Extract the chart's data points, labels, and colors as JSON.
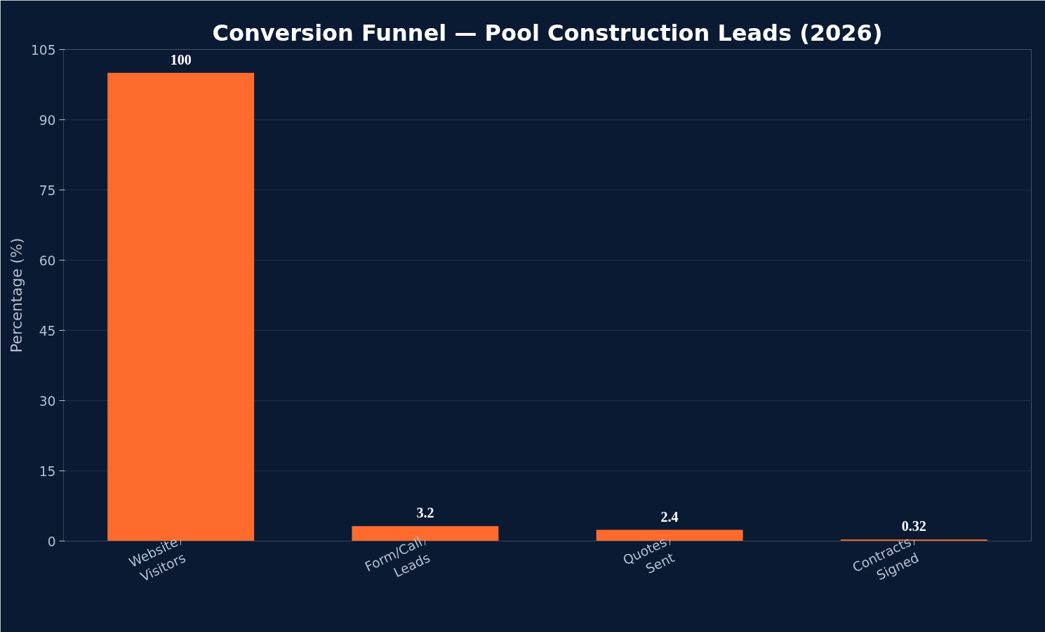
{
  "chart_data": {
    "type": "bar",
    "title": "Conversion Funnel — Pool Construction Leads (2026)",
    "ylabel": "Percentage (%)",
    "categories": [
      "Website Visitors",
      "Form/Call Leads",
      "Quotes Sent",
      "Contracts Signed"
    ],
    "values": [
      100,
      3.2,
      2.4,
      0.32
    ],
    "color": "#ff6b2c",
    "ylim": [
      0,
      105
    ],
    "yticks": [
      0,
      15,
      30,
      45,
      60,
      75,
      90,
      105
    ],
    "grid": "y",
    "data_labels": true
  }
}
